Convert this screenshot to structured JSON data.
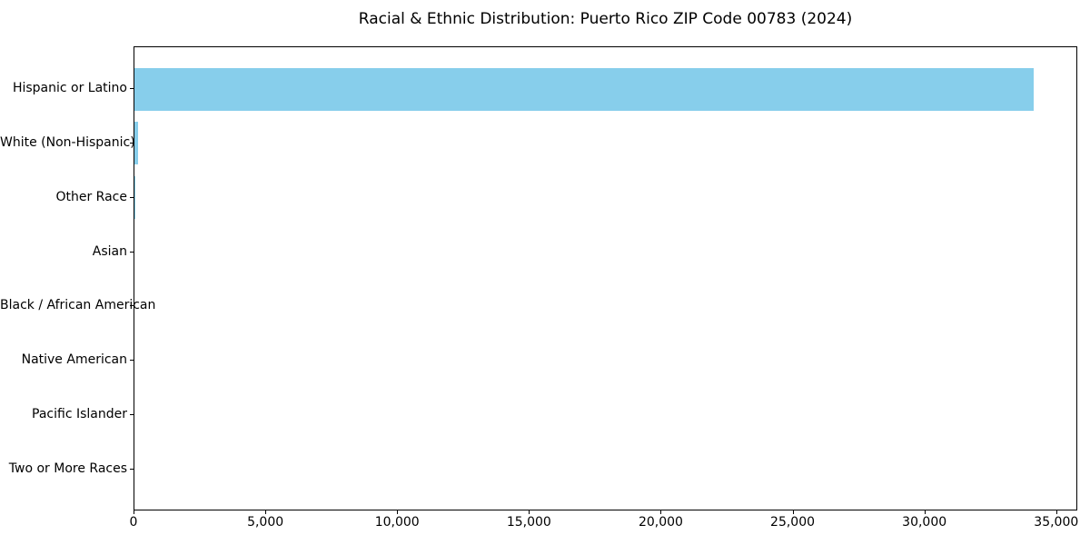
{
  "title": "Racial & Ethnic Distribution: Puerto Rico ZIP Code 00783 (2024)",
  "colors": {
    "bar": "#87CEEB",
    "axis": "#000000",
    "text": "#000000",
    "background": "#FFFFFF"
  },
  "chart_data": {
    "type": "bar",
    "orientation": "horizontal",
    "title": "Racial & Ethnic Distribution: Puerto Rico ZIP Code 00783 (2024)",
    "categories": [
      "Hispanic or Latino",
      "White (Non-Hispanic)",
      "Other Race",
      "Asian",
      "Black / African American",
      "Native American",
      "Pacific Islander",
      "Two or More Races"
    ],
    "values": [
      34100,
      140,
      30,
      0,
      0,
      0,
      0,
      0
    ],
    "xlabel": "",
    "ylabel": "",
    "xlim": [
      0,
      35800
    ],
    "x_ticks": [
      0,
      5000,
      10000,
      15000,
      20000,
      25000,
      30000,
      35000
    ],
    "x_tick_labels": [
      "0",
      "5,000",
      "10,000",
      "15,000",
      "20,000",
      "25,000",
      "30,000",
      "35,000"
    ],
    "grid": false,
    "legend": "none",
    "bar_color": "#87CEEB"
  }
}
